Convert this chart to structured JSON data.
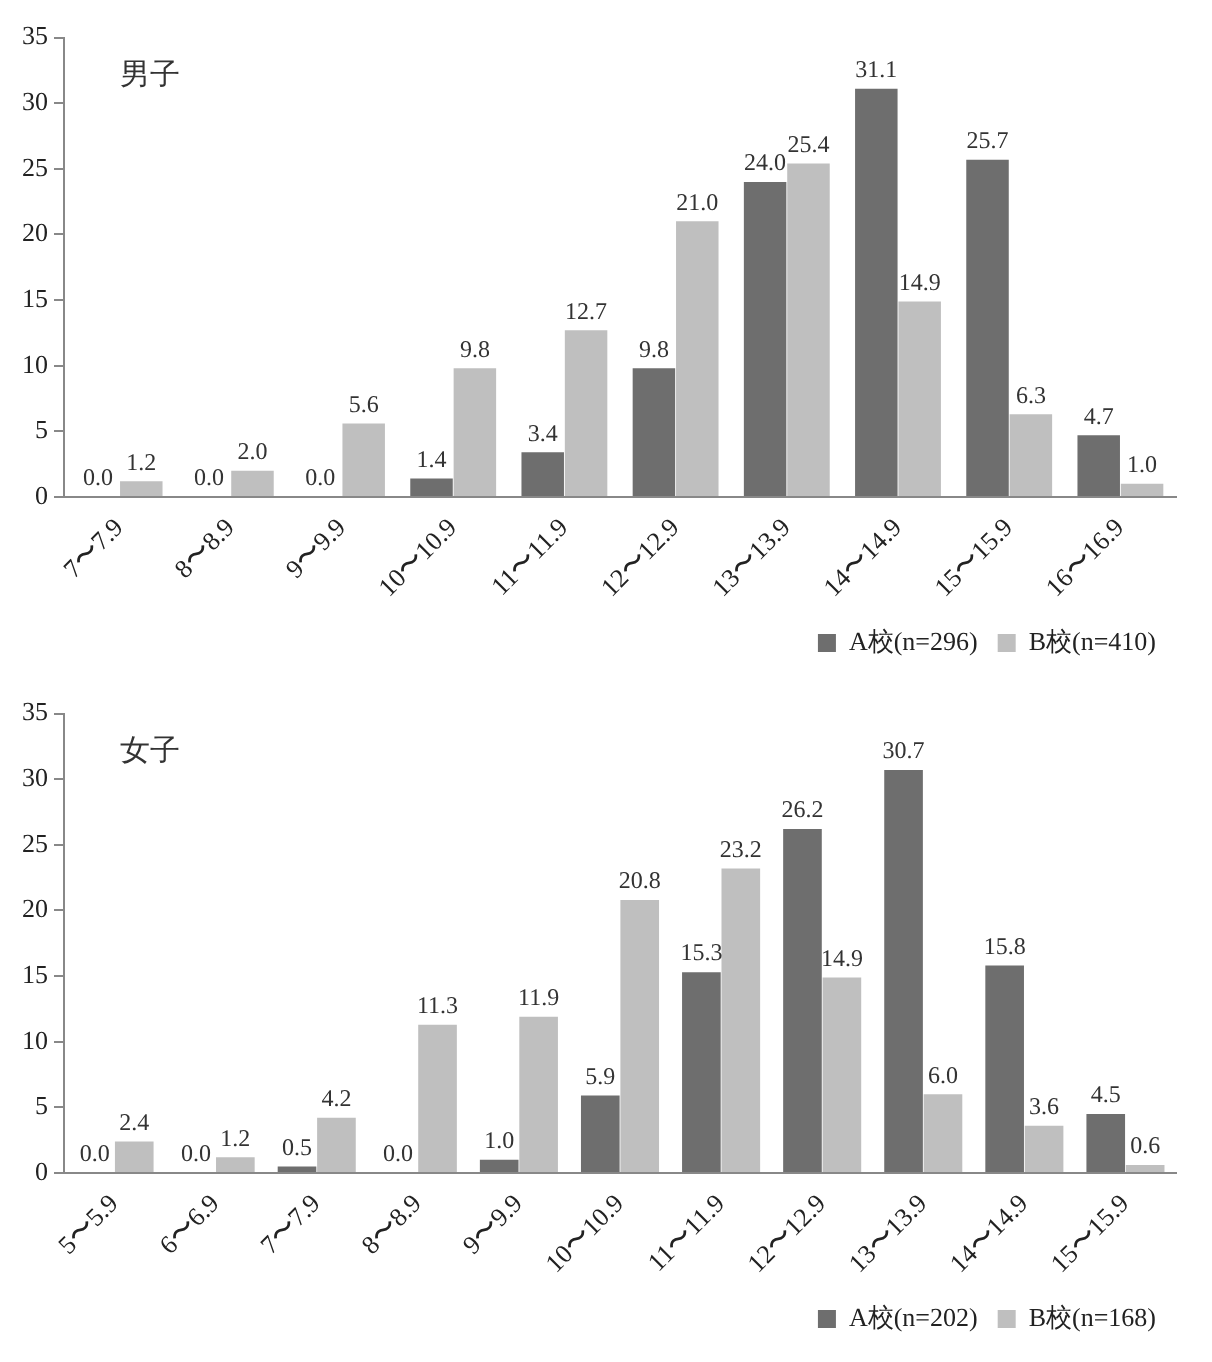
{
  "chart_data": [
    {
      "type": "bar",
      "title": "男子",
      "categories": [
        "7〜7.9",
        "8〜8.9",
        "9〜9.9",
        "10〜10.9",
        "11〜11.9",
        "12〜12.9",
        "13〜13.9",
        "14〜14.9",
        "15〜15.9",
        "16〜16.9"
      ],
      "series": [
        {
          "name": "A校(n=296)",
          "color": "#6e6e6e",
          "values": [
            0,
            0,
            0,
            1.4,
            3.4,
            9.8,
            24,
            31.1,
            25.7,
            4.7
          ],
          "value_labels": [
            "0.0",
            "0.0",
            "0.0",
            "1.4",
            "3.4",
            "9.8",
            "24.0",
            "31.1",
            "25.7",
            "4.7"
          ]
        },
        {
          "name": "B校(n=410)",
          "color": "#bfbfbf",
          "values": [
            1.2,
            2,
            5.6,
            9.8,
            12.7,
            21,
            25.4,
            14.9,
            6.3,
            1
          ],
          "value_labels": [
            "1.2",
            "2.0",
            "5.6",
            "9.8",
            "12.7",
            "21.0",
            "25.4",
            "14.9",
            "6.3",
            "1.0"
          ]
        }
      ],
      "ylim": [
        0,
        35
      ],
      "yticks": [
        0,
        5,
        10,
        15,
        20,
        25,
        30,
        35
      ],
      "grid": false,
      "legend": "bottom"
    },
    {
      "type": "bar",
      "title": "女子",
      "categories": [
        "5〜5.9",
        "6〜6.9",
        "7〜7.9",
        "8〜8.9",
        "9〜9.9",
        "10〜10.9",
        "11〜11.9",
        "12〜12.9",
        "13〜13.9",
        "14〜14.9",
        "15〜15.9"
      ],
      "series": [
        {
          "name": "A校(n=202)",
          "color": "#6e6e6e",
          "values": [
            0,
            0,
            0.5,
            0,
            1,
            5.9,
            15.3,
            26.2,
            30.7,
            15.8,
            4.5
          ],
          "value_labels": [
            "0.0",
            "0.0",
            "0.5",
            "0.0",
            "1.0",
            "5.9",
            "15.3",
            "26.2",
            "30.7",
            "15.8",
            "4.5"
          ]
        },
        {
          "name": "B校(n=168)",
          "color": "#bfbfbf",
          "values": [
            2.4,
            1.2,
            4.2,
            11.3,
            11.9,
            20.8,
            23.2,
            14.9,
            6,
            3.6,
            0.6
          ],
          "value_labels": [
            "2.4",
            "1.2",
            "4.2",
            "11.3",
            "11.9",
            "20.8",
            "23.2",
            "14.9",
            "6.0",
            "3.6",
            "0.6"
          ]
        }
      ],
      "ylim": [
        0,
        35
      ],
      "yticks": [
        0,
        5,
        10,
        15,
        20,
        25,
        30,
        35
      ],
      "grid": false,
      "legend": "bottom"
    }
  ]
}
